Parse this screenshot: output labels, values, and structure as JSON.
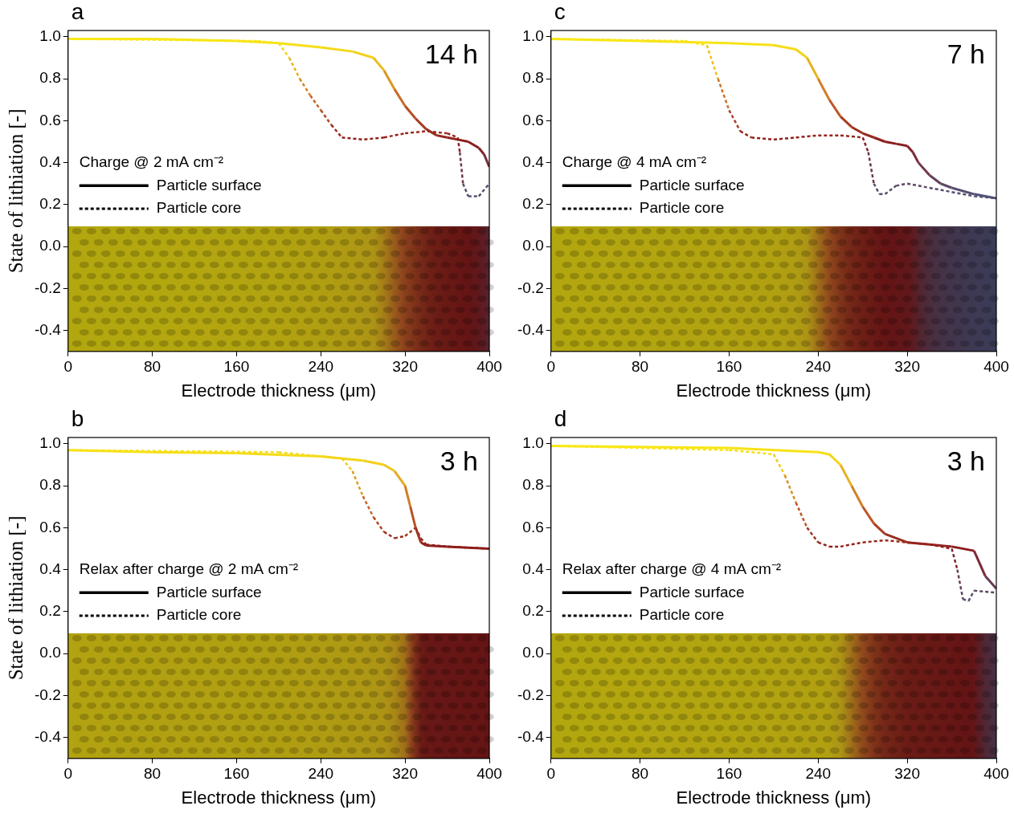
{
  "chart_data": [
    {
      "type": "line",
      "label": "a",
      "annotation": "14 h",
      "legend_title": "Charge @ 2 mA cm⁻²",
      "x_label": "Electrode thickness (μm)",
      "y_label": "State of lithiation [-]",
      "xlim": [
        0,
        400
      ],
      "xticks": [
        0,
        80,
        160,
        240,
        320,
        400
      ],
      "ylim": [
        -0.5,
        1.03
      ],
      "yticks": [
        -0.4,
        -0.2,
        {
          "value": 0,
          "label": "0.0"
        },
        0.2,
        0.4,
        0.6,
        0.8,
        {
          "value": 1,
          "label": "1.0"
        }
      ],
      "grid": false,
      "legend": "left",
      "series": [
        {
          "name": "Particle surface",
          "line_style": "solid",
          "x": [
            0,
            40,
            80,
            120,
            160,
            200,
            240,
            270,
            290,
            300,
            310,
            320,
            330,
            340,
            350,
            360,
            370,
            380,
            390,
            395,
            400
          ],
          "values": [
            0.99,
            0.99,
            0.99,
            0.985,
            0.98,
            0.97,
            0.95,
            0.93,
            0.9,
            0.84,
            0.75,
            0.67,
            0.61,
            0.56,
            0.53,
            0.52,
            0.51,
            0.5,
            0.47,
            0.44,
            0.38
          ]
        },
        {
          "name": "Particle core",
          "line_style": "dashed",
          "x": [
            0,
            180,
            200,
            210,
            220,
            230,
            240,
            250,
            260,
            280,
            300,
            320,
            340,
            360,
            370,
            372,
            375,
            380,
            390,
            400
          ],
          "values": [
            0.99,
            0.98,
            0.97,
            0.9,
            0.8,
            0.72,
            0.65,
            0.58,
            0.52,
            0.51,
            0.52,
            0.54,
            0.55,
            0.54,
            0.52,
            0.45,
            0.3,
            0.24,
            0.24,
            0.3
          ]
        }
      ]
    },
    {
      "type": "line",
      "label": "c",
      "annotation": "7 h",
      "legend_title": "Charge @ 4 mA cm⁻²",
      "x_label": "Electrode thickness (μm)",
      "xlim": [
        0,
        400
      ],
      "xticks": [
        0,
        80,
        160,
        240,
        320,
        400
      ],
      "ylim": [
        -0.5,
        1.03
      ],
      "yticks": [
        -0.4,
        -0.2,
        {
          "value": 0,
          "label": "0.0"
        },
        0.2,
        0.4,
        0.6,
        0.8,
        {
          "value": 1,
          "label": "1.0"
        }
      ],
      "grid": false,
      "legend": "left",
      "series": [
        {
          "name": "Particle surface",
          "line_style": "solid",
          "x": [
            0,
            80,
            160,
            200,
            220,
            230,
            240,
            250,
            260,
            270,
            280,
            290,
            300,
            310,
            320,
            325,
            330,
            340,
            350,
            360,
            380,
            400
          ],
          "values": [
            0.99,
            0.98,
            0.97,
            0.96,
            0.94,
            0.9,
            0.8,
            0.7,
            0.62,
            0.57,
            0.54,
            0.52,
            0.5,
            0.49,
            0.48,
            0.45,
            0.4,
            0.34,
            0.3,
            0.28,
            0.25,
            0.23
          ]
        },
        {
          "name": "Particle core",
          "line_style": "dashed",
          "x": [
            0,
            120,
            140,
            150,
            160,
            170,
            180,
            200,
            220,
            240,
            260,
            280,
            285,
            290,
            295,
            300,
            310,
            320,
            340,
            360,
            380,
            400
          ],
          "values": [
            0.99,
            0.98,
            0.96,
            0.8,
            0.65,
            0.55,
            0.52,
            0.51,
            0.52,
            0.53,
            0.53,
            0.52,
            0.45,
            0.3,
            0.25,
            0.25,
            0.29,
            0.3,
            0.28,
            0.26,
            0.24,
            0.23
          ]
        }
      ]
    },
    {
      "type": "line",
      "label": "b",
      "annotation": "3 h",
      "legend_title": "Relax after charge @ 2 mA cm⁻²",
      "x_label": "Electrode thickness (μm)",
      "y_label": "State of lithiation [-]",
      "xlim": [
        0,
        400
      ],
      "xticks": [
        0,
        80,
        160,
        240,
        320,
        400
      ],
      "ylim": [
        -0.5,
        1.03
      ],
      "yticks": [
        -0.4,
        -0.2,
        {
          "value": 0,
          "label": "0.0"
        },
        0.2,
        0.4,
        0.6,
        0.8,
        {
          "value": 1,
          "label": "1.0"
        }
      ],
      "grid": false,
      "legend": "left",
      "series": [
        {
          "name": "Particle surface",
          "line_style": "solid",
          "x": [
            0,
            80,
            160,
            240,
            280,
            300,
            310,
            320,
            325,
            330,
            335,
            340,
            360,
            400
          ],
          "values": [
            0.97,
            0.96,
            0.955,
            0.94,
            0.92,
            0.9,
            0.87,
            0.8,
            0.7,
            0.6,
            0.53,
            0.515,
            0.51,
            0.5
          ]
        },
        {
          "name": "Particle core",
          "line_style": "dashed",
          "x": [
            0,
            200,
            260,
            270,
            280,
            290,
            300,
            310,
            320,
            330,
            335,
            340,
            360,
            400
          ],
          "values": [
            0.97,
            0.96,
            0.93,
            0.87,
            0.75,
            0.65,
            0.58,
            0.55,
            0.56,
            0.6,
            0.55,
            0.52,
            0.51,
            0.5
          ]
        }
      ]
    },
    {
      "type": "line",
      "label": "d",
      "annotation": "3 h",
      "legend_title": "Relax after charge @ 4 mA cm⁻²",
      "x_label": "Electrode thickness (μm)",
      "xlim": [
        0,
        400
      ],
      "xticks": [
        0,
        80,
        160,
        240,
        320,
        400
      ],
      "ylim": [
        -0.5,
        1.03
      ],
      "yticks": [
        -0.4,
        -0.2,
        {
          "value": 0,
          "label": "0.0"
        },
        0.2,
        0.4,
        0.6,
        0.8,
        {
          "value": 1,
          "label": "1.0"
        }
      ],
      "grid": false,
      "legend": "left",
      "series": [
        {
          "name": "Particle surface",
          "line_style": "solid",
          "x": [
            0,
            80,
            160,
            240,
            250,
            260,
            270,
            280,
            290,
            300,
            320,
            340,
            360,
            380,
            390,
            400
          ],
          "values": [
            0.99,
            0.985,
            0.98,
            0.96,
            0.95,
            0.9,
            0.8,
            0.7,
            0.62,
            0.57,
            0.53,
            0.52,
            0.51,
            0.49,
            0.37,
            0.31
          ]
        },
        {
          "name": "Particle core",
          "line_style": "dashed",
          "x": [
            0,
            160,
            200,
            210,
            220,
            230,
            240,
            250,
            260,
            280,
            300,
            320,
            340,
            360,
            365,
            370,
            375,
            380,
            400
          ],
          "values": [
            0.99,
            0.97,
            0.95,
            0.85,
            0.72,
            0.6,
            0.53,
            0.51,
            0.51,
            0.53,
            0.54,
            0.53,
            0.52,
            0.5,
            0.4,
            0.26,
            0.25,
            0.3,
            0.29
          ]
        }
      ]
    }
  ]
}
